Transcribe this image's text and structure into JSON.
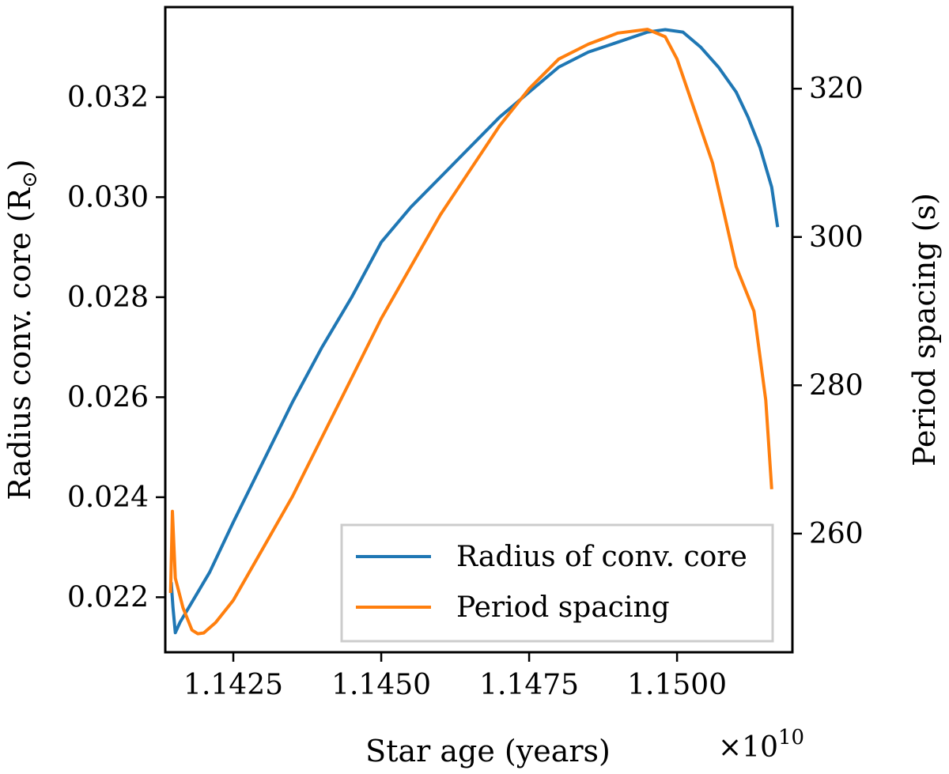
{
  "chart_data": {
    "type": "line",
    "title": "",
    "xlabel": "Star age (years)",
    "x_offset_label": "×10",
    "x_offset_exponent": "10",
    "ylabel_left": "Radius conv. core (R",
    "ylabel_left_symbol": "⊙",
    "ylabel_left_close": ")",
    "ylabel_right": "Period spacing (s)",
    "xlim": [
      1.14135,
      1.15195
    ],
    "ylim_left": [
      0.0209,
      0.0338
    ],
    "ylim_right": [
      244,
      331
    ],
    "x_ticks": [
      1.1425,
      1.145,
      1.1475,
      1.15
    ],
    "x_tick_labels": [
      "1.1425",
      "1.1450",
      "1.1475",
      "1.1500"
    ],
    "y_left_ticks": [
      0.022,
      0.024,
      0.026,
      0.028,
      0.03,
      0.032
    ],
    "y_left_tick_labels": [
      "0.022",
      "0.024",
      "0.026",
      "0.028",
      "0.030",
      "0.032"
    ],
    "y_right_ticks": [
      260,
      280,
      300,
      320
    ],
    "y_right_tick_labels": [
      "260",
      "280",
      "300",
      "320"
    ],
    "grid": false,
    "legend_position": "lower-right",
    "series": [
      {
        "name": "Radius of conv. core",
        "axis": "left",
        "color": "#1f77b4",
        "points": [
          [
            1.14145,
            0.0223
          ],
          [
            1.14148,
            0.0218
          ],
          [
            1.14152,
            0.02129
          ],
          [
            1.1416,
            0.0215
          ],
          [
            1.1418,
            0.0219
          ],
          [
            1.1421,
            0.0225
          ],
          [
            1.1425,
            0.0235
          ],
          [
            1.143,
            0.0247
          ],
          [
            1.1435,
            0.0259
          ],
          [
            1.144,
            0.027
          ],
          [
            1.1445,
            0.028
          ],
          [
            1.145,
            0.0291
          ],
          [
            1.1455,
            0.0298
          ],
          [
            1.146,
            0.0304
          ],
          [
            1.1465,
            0.031
          ],
          [
            1.147,
            0.0316
          ],
          [
            1.1475,
            0.0321
          ],
          [
            1.148,
            0.0326
          ],
          [
            1.1485,
            0.0329
          ],
          [
            1.149,
            0.0331
          ],
          [
            1.1495,
            0.0333
          ],
          [
            1.1498,
            0.03335
          ],
          [
            1.1501,
            0.0333
          ],
          [
            1.1504,
            0.033
          ],
          [
            1.1507,
            0.0326
          ],
          [
            1.151,
            0.0321
          ],
          [
            1.1512,
            0.0316
          ],
          [
            1.1514,
            0.031
          ],
          [
            1.1516,
            0.0302
          ],
          [
            1.1517,
            0.0294
          ]
        ]
      },
      {
        "name": "Period spacing",
        "axis": "right",
        "color": "#ff7f0e",
        "points": [
          [
            1.14144,
            252
          ],
          [
            1.14147,
            263
          ],
          [
            1.14152,
            254
          ],
          [
            1.14165,
            250
          ],
          [
            1.1418,
            247
          ],
          [
            1.1419,
            246.5
          ],
          [
            1.142,
            246.6
          ],
          [
            1.1422,
            248
          ],
          [
            1.1425,
            251
          ],
          [
            1.143,
            258
          ],
          [
            1.1435,
            265
          ],
          [
            1.144,
            273
          ],
          [
            1.1445,
            281
          ],
          [
            1.145,
            289
          ],
          [
            1.1455,
            296
          ],
          [
            1.146,
            303
          ],
          [
            1.1465,
            309
          ],
          [
            1.147,
            315
          ],
          [
            1.1475,
            320
          ],
          [
            1.148,
            324
          ],
          [
            1.1485,
            326
          ],
          [
            1.149,
            327.5
          ],
          [
            1.1495,
            328
          ],
          [
            1.1498,
            327
          ],
          [
            1.15,
            324
          ],
          [
            1.1503,
            317
          ],
          [
            1.1506,
            310
          ],
          [
            1.1508,
            303
          ],
          [
            1.151,
            296
          ],
          [
            1.1512,
            292
          ],
          [
            1.1513,
            290
          ],
          [
            1.1515,
            278
          ],
          [
            1.1516,
            266
          ]
        ]
      }
    ]
  }
}
